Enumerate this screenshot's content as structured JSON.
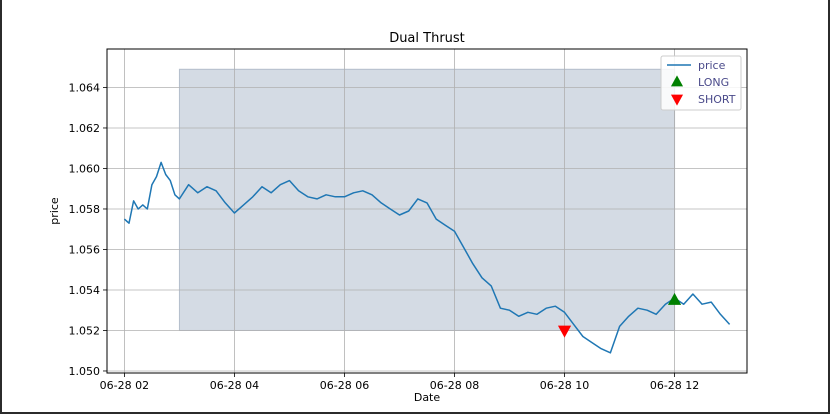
{
  "chart_data": {
    "type": "line",
    "title": "Dual Thrust",
    "xlabel": "Date",
    "ylabel": "price",
    "xlim": [
      "06-28 01:41",
      "06-28 13:19"
    ],
    "ylim": [
      1.0499,
      1.0659
    ],
    "grid": true,
    "legend_position": "top-right",
    "x_ticks": [
      {
        "label": "06-28 02",
        "x": "06-28 02:00"
      },
      {
        "label": "06-28 04",
        "x": "06-28 04:00"
      },
      {
        "label": "06-28 06",
        "x": "06-28 06:00"
      },
      {
        "label": "06-28 08",
        "x": "06-28 08:00"
      },
      {
        "label": "06-28 10",
        "x": "06-28 10:00"
      },
      {
        "label": "06-28 12",
        "x": "06-28 12:00"
      }
    ],
    "y_ticks": [
      "1.050",
      "1.052",
      "1.054",
      "1.056",
      "1.058",
      "1.060",
      "1.062",
      "1.064"
    ],
    "series": [
      {
        "name": "price",
        "color": "#1f77b4",
        "x": [
          "06-28 02:00",
          "06-28 02:05",
          "06-28 02:10",
          "06-28 02:15",
          "06-28 02:20",
          "06-28 02:25",
          "06-28 02:30",
          "06-28 02:35",
          "06-28 02:40",
          "06-28 02:45",
          "06-28 02:50",
          "06-28 02:55",
          "06-28 03:00",
          "06-28 03:10",
          "06-28 03:20",
          "06-28 03:30",
          "06-28 03:40",
          "06-28 03:50",
          "06-28 04:00",
          "06-28 04:10",
          "06-28 04:20",
          "06-28 04:30",
          "06-28 04:40",
          "06-28 04:50",
          "06-28 05:00",
          "06-28 05:10",
          "06-28 05:20",
          "06-28 05:30",
          "06-28 05:40",
          "06-28 05:50",
          "06-28 06:00",
          "06-28 06:10",
          "06-28 06:20",
          "06-28 06:30",
          "06-28 06:40",
          "06-28 06:50",
          "06-28 07:00",
          "06-28 07:10",
          "06-28 07:20",
          "06-28 07:30",
          "06-28 07:40",
          "06-28 07:50",
          "06-28 08:00",
          "06-28 08:10",
          "06-28 08:20",
          "06-28 08:30",
          "06-28 08:40",
          "06-28 08:50",
          "06-28 09:00",
          "06-28 09:10",
          "06-28 09:20",
          "06-28 09:30",
          "06-28 09:40",
          "06-28 09:50",
          "06-28 10:00",
          "06-28 10:10",
          "06-28 10:20",
          "06-28 10:30",
          "06-28 10:40",
          "06-28 10:50",
          "06-28 11:00",
          "06-28 11:10",
          "06-28 11:20",
          "06-28 11:30",
          "06-28 11:40",
          "06-28 11:50",
          "06-28 12:00",
          "06-28 12:10",
          "06-28 12:20",
          "06-28 12:30",
          "06-28 12:40",
          "06-28 12:50",
          "06-28 13:00"
        ],
        "y": [
          1.0575,
          1.0573,
          1.0584,
          1.058,
          1.0582,
          1.058,
          1.0592,
          1.0596,
          1.0603,
          1.0597,
          1.0594,
          1.0587,
          1.0585,
          1.0592,
          1.0588,
          1.0591,
          1.0589,
          1.0583,
          1.0578,
          1.0582,
          1.0586,
          1.0591,
          1.0588,
          1.0592,
          1.0594,
          1.0589,
          1.0586,
          1.0585,
          1.0587,
          1.0586,
          1.0586,
          1.0588,
          1.0589,
          1.0587,
          1.0583,
          1.058,
          1.0577,
          1.0579,
          1.0585,
          1.0583,
          1.0575,
          1.0572,
          1.0569,
          1.0561,
          1.0553,
          1.0546,
          1.0542,
          1.0531,
          1.053,
          1.0527,
          1.0529,
          1.0528,
          1.0531,
          1.0532,
          1.0529,
          1.0523,
          1.0517,
          1.0514,
          1.0511,
          1.0509,
          1.0522,
          1.0527,
          1.0531,
          1.053,
          1.0528,
          1.0533,
          1.0536,
          1.0533,
          1.0538,
          1.0533,
          1.0534,
          1.0528,
          1.0523
        ]
      }
    ],
    "markers": [
      {
        "name": "LONG",
        "x": "06-28 12:00",
        "y": 1.0535,
        "shape": "triangle-up",
        "color": "#008000"
      },
      {
        "name": "SHORT",
        "x": "06-28 10:00",
        "y": 1.052,
        "shape": "triangle-down",
        "color": "#ff0000"
      }
    ],
    "shaded_region": {
      "x0": "06-28 03:00",
      "x1": "06-28 12:00",
      "y0": 1.052,
      "y1": 1.0649,
      "color": "#8da0b8"
    }
  }
}
